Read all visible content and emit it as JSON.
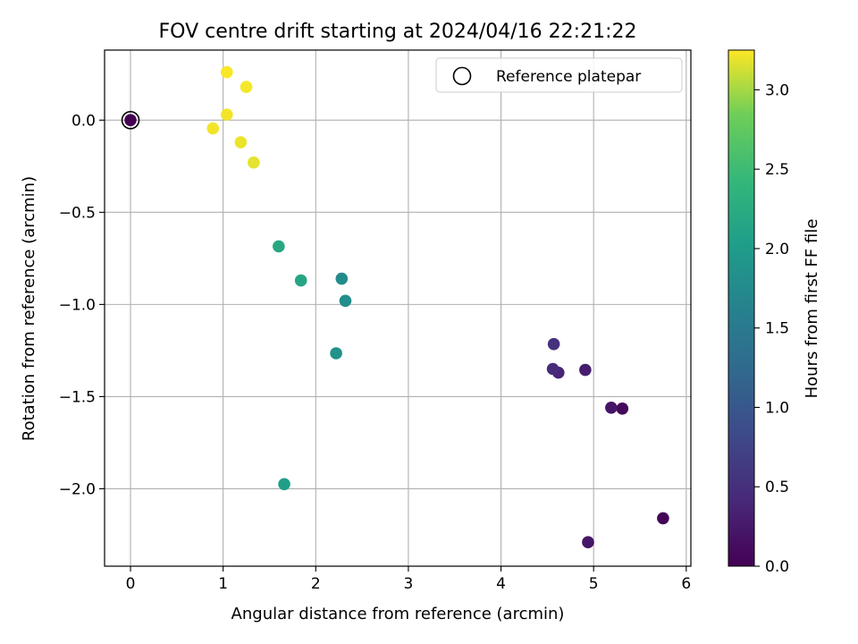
{
  "chart_data": {
    "type": "scatter",
    "title": "FOV centre drift starting at 2024/04/16 22:21:22",
    "xlabel": "Angular distance from reference (arcmin)",
    "ylabel": "Rotation from reference (arcmin)",
    "xlim": [
      -0.28,
      6.05
    ],
    "ylim": [
      -2.42,
      0.38
    ],
    "xticks": [
      0,
      1,
      2,
      3,
      4,
      5,
      6
    ],
    "yticks": [
      0.0,
      -0.5,
      -1.0,
      -1.5,
      -2.0
    ],
    "xtick_labels": [
      "0",
      "1",
      "2",
      "3",
      "4",
      "5",
      "6"
    ],
    "ytick_labels": [
      "0.0",
      "−0.5",
      "−1.0",
      "−1.5",
      "−2.0"
    ],
    "grid": true,
    "legend": {
      "placement": "top-right",
      "entries": [
        "Reference platepar"
      ]
    },
    "colorbar": {
      "label": "Hours from first FF file",
      "range": [
        0.0,
        3.25
      ],
      "ticks": [
        0.0,
        0.5,
        1.0,
        1.5,
        2.0,
        2.5,
        3.0
      ],
      "tick_labels": [
        "0.0",
        "0.5",
        "1.0",
        "1.5",
        "2.0",
        "2.5",
        "3.0"
      ],
      "colormap": "viridis"
    },
    "reference": {
      "x": 0,
      "y": 0
    },
    "points": [
      {
        "x": 0.0,
        "y": 0.0,
        "t": 0.0
      },
      {
        "x": 5.75,
        "y": -2.16,
        "t": 0.03
      },
      {
        "x": 5.31,
        "y": -1.565,
        "t": 0.08
      },
      {
        "x": 5.19,
        "y": -1.56,
        "t": 0.2
      },
      {
        "x": 4.94,
        "y": -2.29,
        "t": 0.22
      },
      {
        "x": 4.91,
        "y": -1.355,
        "t": 0.3
      },
      {
        "x": 4.62,
        "y": -1.37,
        "t": 0.38
      },
      {
        "x": 4.56,
        "y": -1.35,
        "t": 0.45
      },
      {
        "x": 4.57,
        "y": -1.215,
        "t": 0.52
      },
      {
        "x": 2.28,
        "y": -0.86,
        "t": 1.75
      },
      {
        "x": 2.32,
        "y": -0.98,
        "t": 1.8
      },
      {
        "x": 2.22,
        "y": -1.265,
        "t": 1.85
      },
      {
        "x": 1.66,
        "y": -1.975,
        "t": 2.05
      },
      {
        "x": 1.84,
        "y": -0.87,
        "t": 2.15
      },
      {
        "x": 1.6,
        "y": -0.685,
        "t": 2.2
      },
      {
        "x": 1.33,
        "y": -0.23,
        "t": 3.18
      },
      {
        "x": 1.19,
        "y": -0.12,
        "t": 3.2
      },
      {
        "x": 0.89,
        "y": -0.045,
        "t": 3.22
      },
      {
        "x": 1.04,
        "y": 0.03,
        "t": 3.22
      },
      {
        "x": 1.25,
        "y": 0.18,
        "t": 3.23
      },
      {
        "x": 1.04,
        "y": 0.26,
        "t": 3.24
      }
    ]
  }
}
